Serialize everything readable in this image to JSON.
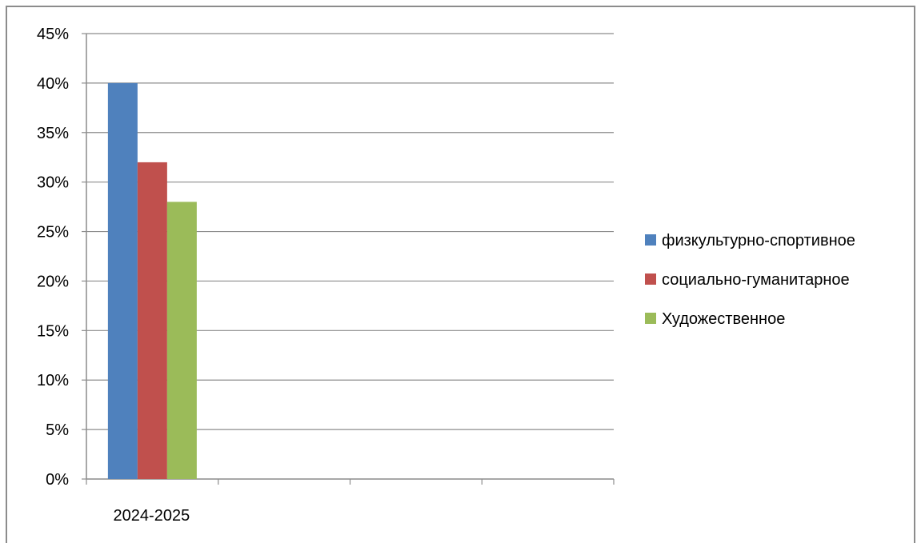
{
  "chart_data": {
    "type": "bar",
    "title": "",
    "xlabel": "",
    "ylabel": "",
    "categories": [
      "2024-2025",
      "",
      "",
      ""
    ],
    "series": [
      {
        "name": "физкультурно-спортивное",
        "values": [
          0.4,
          null,
          null,
          null
        ],
        "color": "#4F81BD"
      },
      {
        "name": "социально-гуманитарное",
        "values": [
          0.32,
          null,
          null,
          null
        ],
        "color": "#C0504D"
      },
      {
        "name": "Художественное",
        "values": [
          0.28,
          null,
          null,
          null
        ],
        "color": "#9BBB59"
      }
    ],
    "ylim": [
      0,
      0.45
    ],
    "yticks": [
      0,
      0.05,
      0.1,
      0.15,
      0.2,
      0.25,
      0.3,
      0.35,
      0.4,
      0.45
    ],
    "ytick_labels": [
      "0%",
      "5%",
      "10%",
      "15%",
      "20%",
      "25%",
      "30%",
      "35%",
      "40%",
      "45%"
    ],
    "grid": true,
    "legend_position": "right"
  }
}
